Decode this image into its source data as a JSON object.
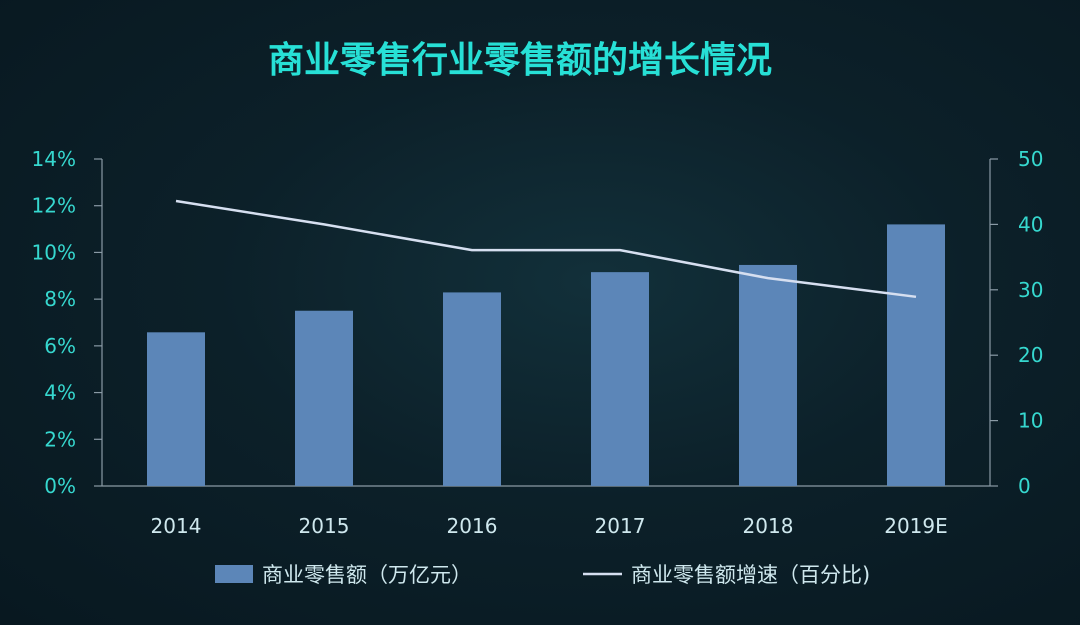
{
  "chart_data": {
    "type": "bar+line",
    "title": "商业零售行业零售额的增长情况",
    "categories": [
      "2014",
      "2015",
      "2016",
      "2017",
      "2018",
      "2019E"
    ],
    "series": [
      {
        "name": "商业零售额（万亿元）",
        "type": "bar",
        "axis": "right",
        "values": [
          23.5,
          26.8,
          29.6,
          32.7,
          33.8,
          40.0
        ]
      },
      {
        "name": "商业零售额增速（百分比)",
        "type": "line",
        "axis": "left",
        "values": [
          12.2,
          11.2,
          10.1,
          10.1,
          8.9,
          8.1
        ]
      }
    ],
    "y_left": {
      "ticks": [
        "0%",
        "2%",
        "4%",
        "6%",
        "8%",
        "10%",
        "12%",
        "14%"
      ],
      "range": [
        0,
        14
      ]
    },
    "y_right": {
      "ticks": [
        "0",
        "10",
        "20",
        "30",
        "40",
        "50"
      ],
      "range": [
        0,
        50
      ]
    },
    "grid": false,
    "legend_position": "bottom"
  },
  "colors": {
    "bar": "#5c86b8",
    "line": "#d6dff0",
    "title": "#27e0d6",
    "axis_ticks": "#36d8cf",
    "axis_line": "#8a9aa5"
  }
}
